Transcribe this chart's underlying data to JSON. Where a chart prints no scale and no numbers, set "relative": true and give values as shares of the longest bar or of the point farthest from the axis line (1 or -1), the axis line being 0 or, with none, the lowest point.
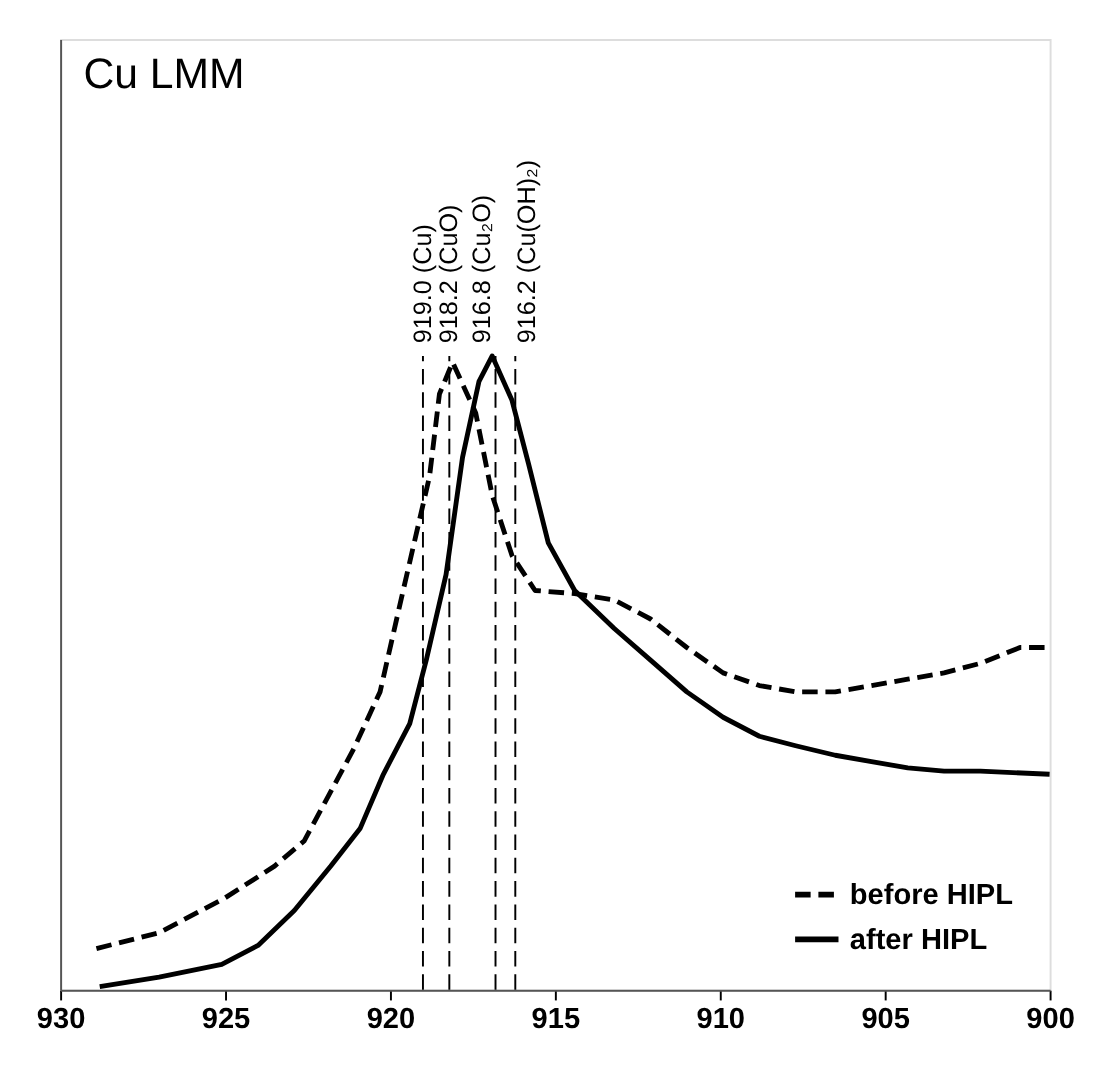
{
  "chart_data": {
    "type": "line",
    "title": "Cu LMM",
    "relative": true,
    "xlim": [
      930,
      900
    ],
    "xticks": [
      930,
      925,
      920,
      915,
      910,
      905,
      900
    ],
    "legend": "bottom right",
    "grid": false,
    "marker": "none",
    "series": [
      {
        "name": "before HIPL",
        "color": "#000000",
        "line_style": "dashed",
        "x": [
          928.9,
          927.0,
          925.0,
          923.5,
          922.6,
          921.1,
          920.3,
          919.6,
          918.8,
          918.5,
          918.1,
          917.4,
          916.9,
          916.3,
          915.6,
          914.4,
          913.2,
          912.1,
          911.0,
          909.9,
          908.8,
          907.7,
          906.5,
          905.4,
          904.3,
          903.2,
          902.1,
          900.9,
          900.0
        ],
        "values": [
          0.065,
          0.09,
          0.145,
          0.195,
          0.235,
          0.38,
          0.47,
          0.63,
          0.81,
          0.94,
          0.99,
          0.91,
          0.78,
          0.685,
          0.63,
          0.625,
          0.615,
          0.585,
          0.54,
          0.5,
          0.48,
          0.47,
          0.47,
          0.48,
          0.49,
          0.5,
          0.515,
          0.54,
          0.54
        ]
      },
      {
        "name": "after HIPL",
        "color": "#000000",
        "line_style": "solid",
        "x": [
          928.8,
          927.0,
          925.1,
          924.0,
          922.9,
          921.8,
          920.9,
          920.2,
          919.4,
          918.9,
          918.3,
          917.8,
          917.3,
          916.9,
          916.3,
          915.8,
          915.2,
          914.4,
          913.2,
          912.1,
          911.0,
          909.9,
          908.8,
          907.7,
          906.5,
          905.4,
          904.3,
          903.2,
          902.1,
          900.0
        ],
        "values": [
          0.005,
          0.02,
          0.04,
          0.07,
          0.125,
          0.195,
          0.255,
          0.34,
          0.42,
          0.52,
          0.655,
          0.84,
          0.96,
          1.0,
          0.93,
          0.83,
          0.705,
          0.63,
          0.57,
          0.52,
          0.47,
          0.43,
          0.4,
          0.385,
          0.37,
          0.36,
          0.35,
          0.345,
          0.345,
          0.34
        ]
      }
    ],
    "ref_lines": [
      {
        "axis": "x",
        "value": 919.0,
        "label": "919.0 (Cu)",
        "line_style": "dashed",
        "color": "#000000"
      },
      {
        "axis": "x",
        "value": 918.2,
        "label": "918.2 (CuO)",
        "line_style": "dashed",
        "color": "#000000"
      },
      {
        "axis": "x",
        "value": 916.8,
        "label": "916.8 (Cu₂O)",
        "line_style": "dashed",
        "color": "#000000"
      },
      {
        "axis": "x",
        "value": 916.2,
        "label": "916.2 (Cu(OH)₂)",
        "line_style": "dashed",
        "color": "#000000"
      }
    ]
  }
}
